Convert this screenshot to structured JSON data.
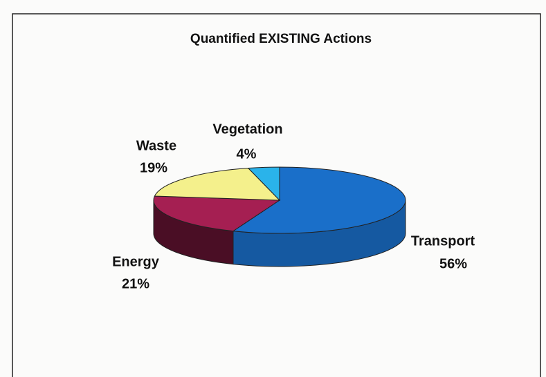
{
  "chart_data": {
    "type": "pie",
    "title": "Quantified EXISTING Actions",
    "categories": [
      "Transport",
      "Energy",
      "Waste",
      "Vegetation"
    ],
    "values": [
      56,
      21,
      19,
      4
    ],
    "value_labels": [
      "56%",
      "21%",
      "19%",
      "4%"
    ],
    "colors": [
      "#1a6fc9",
      "#a51f52",
      "#f4f08c",
      "#2ab3ea"
    ]
  }
}
